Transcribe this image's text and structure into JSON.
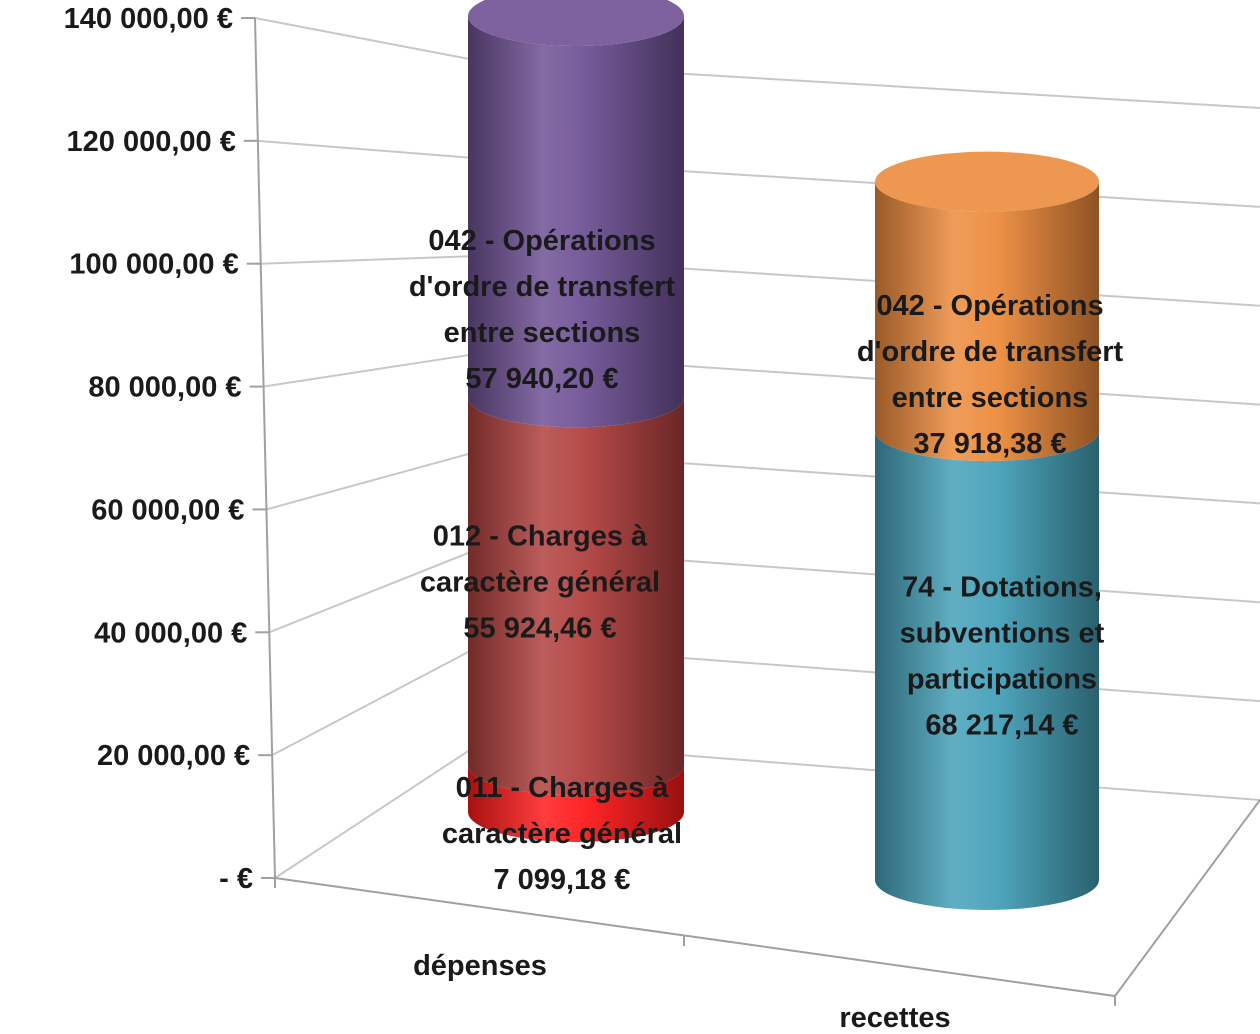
{
  "chart_data": {
    "type": "bar",
    "variant": "stacked-3d-cylinder",
    "title": "",
    "xlabel": "",
    "ylabel": "",
    "ylim": [
      0,
      140000
    ],
    "grid": true,
    "legend": "none",
    "y_ticks": [
      {
        "value": 0,
        "label": "-   €"
      },
      {
        "value": 20000,
        "label": "20 000,00 €"
      },
      {
        "value": 40000,
        "label": "40 000,00 €"
      },
      {
        "value": 60000,
        "label": "60 000,00 €"
      },
      {
        "value": 80000,
        "label": "80 000,00 €"
      },
      {
        "value": 100000,
        "label": "100 000,00 €"
      },
      {
        "value": 120000,
        "label": "120 000,00 €"
      },
      {
        "value": 140000,
        "label": "140 000,00 €"
      }
    ],
    "categories": [
      "dépenses",
      "recettes"
    ],
    "stacks": [
      {
        "category": "dépenses",
        "segments": [
          {
            "label_lines": [
              "011 - Charges à",
              "caractère général",
              "7 099,18 €"
            ],
            "value": 7099.18,
            "color": "#ff1a1a"
          },
          {
            "label_lines": [
              "012 - Charges à",
              "caractère général",
              "55 924,46 €"
            ],
            "value": 55924.46,
            "color": "#b0403e"
          },
          {
            "label_lines": [
              "042 - Opérations",
              "d'ordre de transfert",
              "entre sections",
              "57 940,20 €"
            ],
            "value": 57940.2,
            "color": "#6e5194"
          }
        ]
      },
      {
        "category": "recettes",
        "segments": [
          {
            "label_lines": [
              "74 - Dotations,",
              "subventions et",
              "participations",
              "68 217,14 €"
            ],
            "value": 68217.14,
            "color": "#45a0b8"
          },
          {
            "label_lines": [
              "042 - Opérations",
              "d'ordre de transfert",
              "entre sections",
              "37 918,38 €"
            ],
            "value": 37918.38,
            "color": "#ec8b3c"
          }
        ]
      }
    ]
  }
}
